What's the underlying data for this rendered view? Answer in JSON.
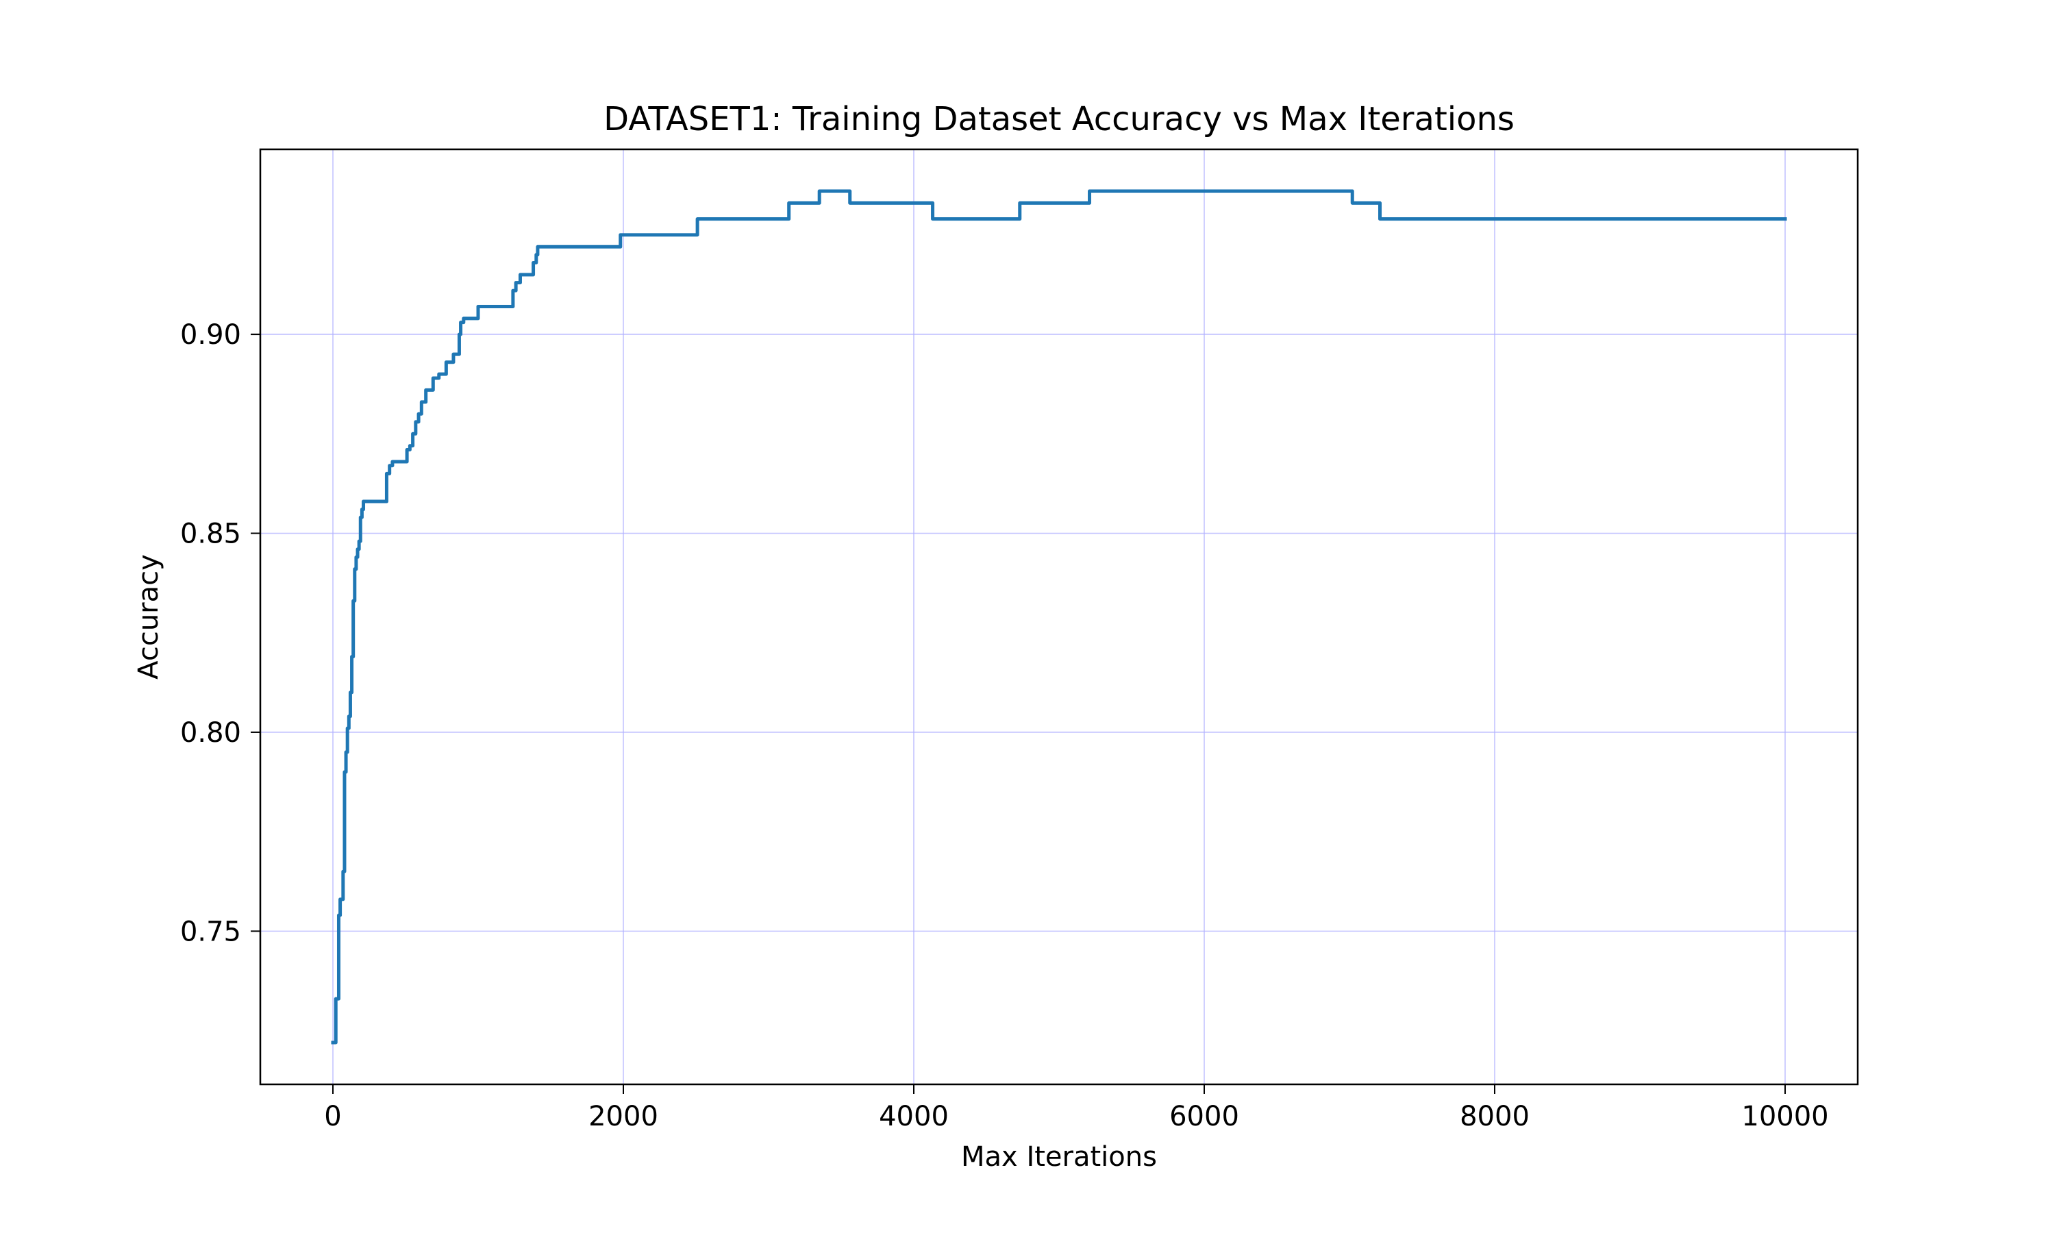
{
  "chart_data": {
    "type": "line",
    "title": "DATASET1: Training Dataset Accuracy vs Max Iterations",
    "xlabel": "Max Iterations",
    "ylabel": "Accuracy",
    "xlim": [
      -500,
      10500
    ],
    "ylim": [
      0.7115,
      0.9465
    ],
    "xticks": [
      0,
      2000,
      4000,
      6000,
      8000,
      10000
    ],
    "xtick_labels": [
      "0",
      "2000",
      "4000",
      "6000",
      "8000",
      "10000"
    ],
    "yticks": [
      0.75,
      0.8,
      0.85,
      0.9
    ],
    "ytick_labels": [
      "0.75",
      "0.80",
      "0.85",
      "0.90"
    ],
    "grid": true,
    "grid_color": "#b0b0ff",
    "line_color": "#1f77b4",
    "step": true,
    "series": [
      {
        "x": [
          0,
          20,
          40,
          50,
          70,
          80,
          90,
          100,
          110,
          120,
          130,
          140,
          150,
          160,
          170,
          180,
          190,
          200,
          210,
          220,
          230,
          240,
          250,
          270,
          370,
          390,
          410,
          510,
          530,
          550,
          570,
          590,
          610,
          640,
          690,
          730,
          780,
          830,
          870,
          880,
          900,
          1000,
          1240,
          1260,
          1290,
          1380,
          1400,
          1410,
          1970,
          1980,
          2490,
          2510,
          3120,
          3140,
          3330,
          3350,
          3540,
          3560,
          4110,
          4130,
          4710,
          4730,
          5190,
          5210,
          7000,
          7020,
          7190,
          7210,
          10000
        ],
        "y": [
          0.722,
          0.733,
          0.754,
          0.758,
          0.765,
          0.79,
          0.795,
          0.801,
          0.804,
          0.81,
          0.819,
          0.833,
          0.841,
          0.844,
          0.846,
          0.848,
          0.854,
          0.856,
          0.858,
          0.858,
          0.858,
          0.858,
          0.858,
          0.858,
          0.865,
          0.867,
          0.868,
          0.871,
          0.872,
          0.875,
          0.878,
          0.88,
          0.883,
          0.886,
          0.889,
          0.89,
          0.893,
          0.895,
          0.9,
          0.903,
          0.904,
          0.907,
          0.911,
          0.913,
          0.915,
          0.918,
          0.92,
          0.922,
          0.922,
          0.925,
          0.925,
          0.929,
          0.929,
          0.933,
          0.933,
          0.936,
          0.936,
          0.933,
          0.933,
          0.929,
          0.929,
          0.933,
          0.933,
          0.936,
          0.936,
          0.933,
          0.933,
          0.929,
          0.929
        ]
      }
    ]
  }
}
